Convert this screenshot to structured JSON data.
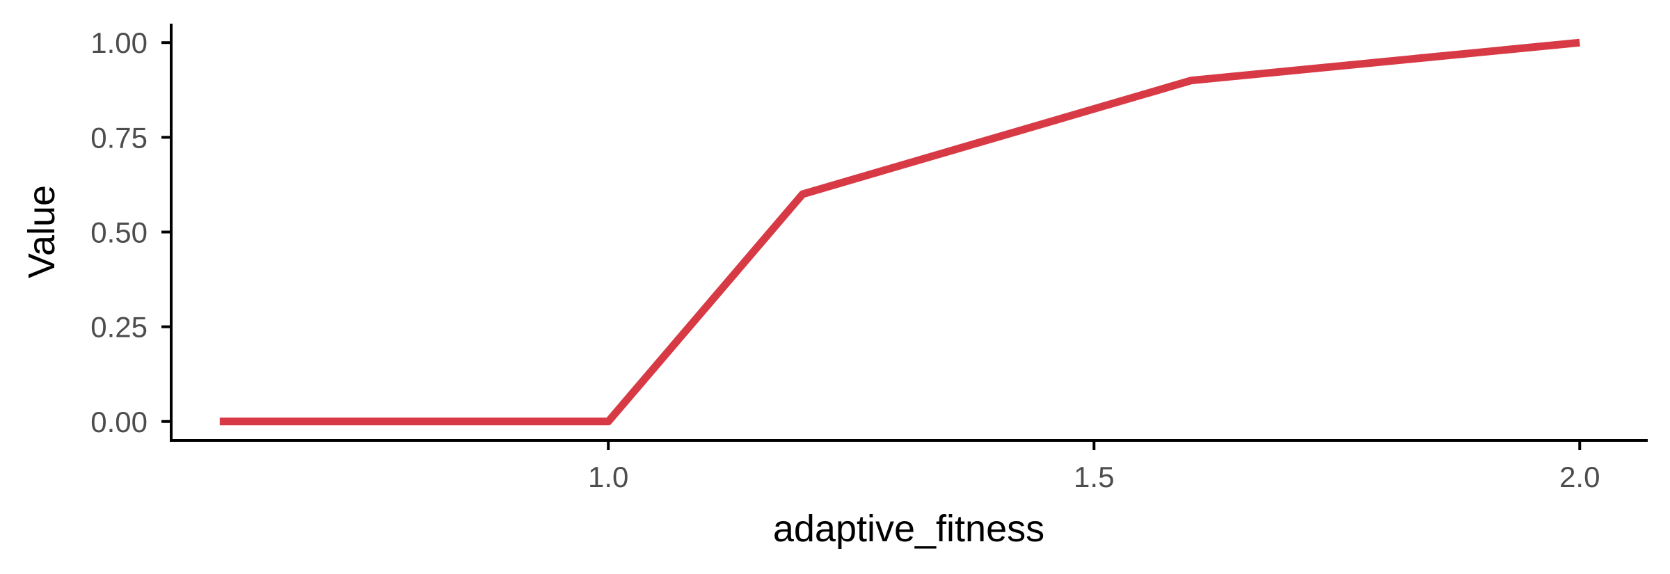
{
  "chart_data": {
    "type": "line",
    "xlabel": "adaptive_fitness",
    "ylabel": "Value",
    "xlim": [
      0.55,
      2.07
    ],
    "ylim": [
      -0.05,
      1.05
    ],
    "x_ticks": [
      1.0,
      1.5,
      2.0
    ],
    "x_tick_labels": [
      "1.0",
      "1.5",
      "2.0"
    ],
    "y_ticks": [
      0.0,
      0.25,
      0.5,
      0.75,
      1.0
    ],
    "y_tick_labels": [
      "0.00",
      "0.25",
      "0.50",
      "0.75",
      "1.00"
    ],
    "grid": false,
    "series": [
      {
        "color": "#d73a45",
        "x": [
          0.6,
          1.0,
          1.2,
          1.6,
          2.0
        ],
        "y": [
          0.0,
          0.0,
          0.6,
          0.9,
          1.0
        ]
      }
    ]
  }
}
